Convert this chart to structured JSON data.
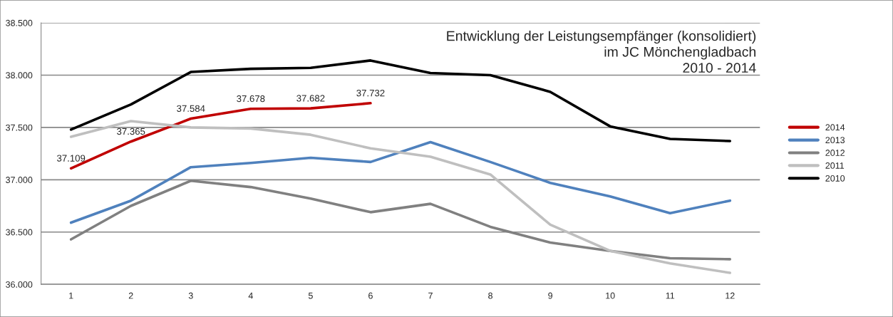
{
  "chart_data": {
    "type": "line",
    "title": "Entwicklung der Leistungsempfänger (konsolidiert)\nim JC Mönchengladbach\n2010 - 2014",
    "categories": [
      "1",
      "2",
      "3",
      "4",
      "5",
      "6",
      "7",
      "8",
      "9",
      "10",
      "11",
      "12"
    ],
    "series": [
      {
        "name": "2014",
        "color": "#c00000",
        "values": [
          37109,
          37365,
          37584,
          37678,
          37682,
          37732,
          null,
          null,
          null,
          null,
          null,
          null
        ],
        "value_labels": [
          "37.109",
          "37.365",
          "37.584",
          "37.678",
          "37.682",
          "37.732",
          null,
          null,
          null,
          null,
          null,
          null
        ]
      },
      {
        "name": "2013",
        "color": "#4f81bd",
        "values": [
          36590,
          36800,
          37120,
          37160,
          37210,
          37170,
          37360,
          37170,
          36970,
          36840,
          36680,
          36800
        ]
      },
      {
        "name": "2012",
        "color": "#808080",
        "values": [
          36430,
          36750,
          36990,
          36930,
          36820,
          36690,
          36770,
          36550,
          36400,
          36320,
          36250,
          36240
        ]
      },
      {
        "name": "2011",
        "color": "#bfbfbf",
        "values": [
          37410,
          37560,
          37500,
          37490,
          37430,
          37300,
          37220,
          37050,
          36570,
          36320,
          36200,
          36110
        ]
      },
      {
        "name": "2010",
        "color": "#000000",
        "values": [
          37480,
          37720,
          38030,
          38060,
          38070,
          38140,
          38020,
          38000,
          37840,
          37510,
          37390,
          37370
        ]
      }
    ],
    "ylim": [
      36000,
      38500
    ],
    "yticks": [
      {
        "value": 36000,
        "label": "36.000"
      },
      {
        "value": 36500,
        "label": "36.500"
      },
      {
        "value": 37000,
        "label": "37.000"
      },
      {
        "value": 37500,
        "label": "37.500"
      },
      {
        "value": 38000,
        "label": "38.000"
      },
      {
        "value": 38500,
        "label": "38.500"
      }
    ],
    "grid": "y",
    "legend": "right",
    "marker": "none",
    "line_style": "solid"
  }
}
